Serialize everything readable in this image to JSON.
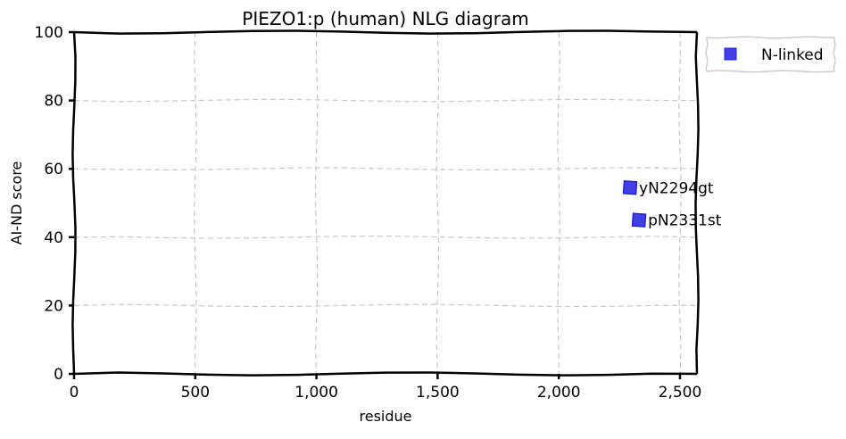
{
  "chart_data": {
    "type": "scatter",
    "title": "PIEZO1:p (human) NLG diagram",
    "xlabel": "residue",
    "ylabel": "AI-ND score",
    "xlim": [
      0,
      2570
    ],
    "ylim": [
      0,
      100
    ],
    "x_ticks": [
      0,
      500,
      1000,
      1500,
      2000,
      2500
    ],
    "x_tick_labels": [
      "0",
      "500",
      "1,000",
      "1,500",
      "2,000",
      "2,500"
    ],
    "y_ticks": [
      0,
      20,
      40,
      60,
      80,
      100
    ],
    "y_tick_labels": [
      "0",
      "20",
      "40",
      "60",
      "80",
      "100"
    ],
    "grid": true,
    "legend_position": "outside-top-right",
    "series": [
      {
        "name": "N-linked",
        "color": "#1f1fe0",
        "marker": "square",
        "points": [
          {
            "x": 2294,
            "y": 54.5,
            "label": "yN2294gt"
          },
          {
            "x": 2331,
            "y": 45,
            "label": "pN2331st"
          }
        ]
      }
    ]
  }
}
